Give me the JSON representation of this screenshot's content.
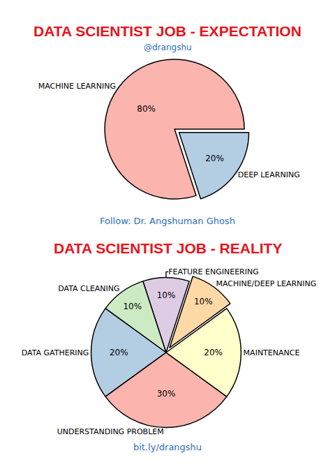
{
  "chart_data": [
    {
      "type": "pie",
      "title": "DATA SCIENTIST JOB - EXPECTATION",
      "subtitle": "@drangshu",
      "annotations": [
        "Follow: Dr. Angshuman Ghosh"
      ],
      "categories": [
        "DEEP LEARNING",
        "MACHINE LEARNING"
      ],
      "values": [
        20,
        80
      ],
      "value_labels": [
        "20%",
        "80%"
      ],
      "colors": [
        "#b3cde3",
        "#fbb4ae"
      ],
      "data_labels": true
    },
    {
      "type": "pie",
      "title": "DATA SCIENTIST JOB - REALITY",
      "annotations": [
        "bit.ly/drangshu"
      ],
      "categories": [
        "MACHINE/DEEP LEARNING",
        "FEATURE ENGINEERING",
        "DATA CLEANING",
        "DATA GATHERING",
        "UNDERSTANDING PROBLEM",
        "MAINTENANCE"
      ],
      "values": [
        10,
        10,
        10,
        20,
        30,
        20
      ],
      "value_labels": [
        "10%",
        "10%",
        "10%",
        "20%",
        "30%",
        "20%"
      ],
      "colors": [
        "#fed9a6",
        "#decbe4",
        "#ccebc5",
        "#b3cde3",
        "#fbb4ae",
        "#ffffcc"
      ],
      "data_labels": true
    }
  ]
}
